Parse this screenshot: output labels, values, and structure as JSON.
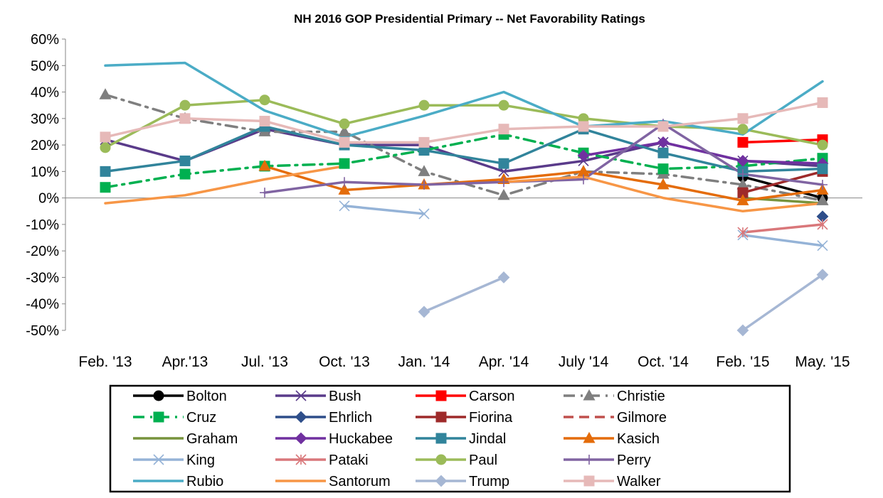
{
  "chart_data": {
    "type": "line",
    "title": "NH 2016 GOP Presidential Primary -- Net Favorability Ratings",
    "xlabel": "",
    "ylabel": "",
    "categories": [
      "Feb. '13",
      "Apr.'13",
      "Jul. '13",
      "Oct. '13",
      "Jan. '14",
      "Apr. '14",
      "July '14",
      "Oct. '14",
      "Feb. '15",
      "May. '15"
    ],
    "ylim": [
      -0.5,
      0.6
    ],
    "yticks": [
      0.6,
      0.5,
      0.4,
      0.3,
      0.2,
      0.1,
      0,
      -0.1,
      -0.2,
      -0.3,
      -0.4,
      -0.5
    ],
    "ytick_labels": [
      "60%",
      "50%",
      "40%",
      "30%",
      "20%",
      "10%",
      "0%",
      "-10%",
      "-20%",
      "-30%",
      "-40%",
      "-50%"
    ],
    "grid": false,
    "legend_position": "bottom",
    "series": [
      {
        "name": "Bolton",
        "color": "#000000",
        "dash": "solid",
        "marker": "circle",
        "values": [
          null,
          null,
          null,
          null,
          null,
          null,
          null,
          null,
          0.08,
          0.0
        ]
      },
      {
        "name": "Bush",
        "color": "#5a3b8a",
        "dash": "solid",
        "marker": "x",
        "values": [
          0.22,
          0.14,
          0.26,
          0.2,
          0.2,
          0.1,
          0.14,
          0.21,
          0.14,
          0.12
        ]
      },
      {
        "name": "Carson",
        "color": "#ff0000",
        "dash": "solid",
        "marker": "square",
        "values": [
          null,
          null,
          null,
          null,
          null,
          null,
          null,
          null,
          0.21,
          0.22
        ]
      },
      {
        "name": "Christie",
        "color": "#7f7f7f",
        "dash": "dashdot",
        "marker": "triangle",
        "values": [
          0.39,
          0.3,
          0.25,
          0.25,
          0.1,
          0.01,
          0.1,
          0.09,
          0.05,
          -0.01
        ]
      },
      {
        "name": "Cruz",
        "color": "#00b050",
        "dash": "dashdot",
        "marker": "square",
        "values": [
          0.04,
          0.09,
          0.12,
          0.13,
          0.18,
          0.24,
          0.17,
          0.11,
          0.12,
          0.15
        ]
      },
      {
        "name": "Ehrlich",
        "color": "#2e4e8a",
        "dash": "solid",
        "marker": "diamond",
        "values": [
          null,
          null,
          null,
          null,
          null,
          null,
          null,
          null,
          null,
          -0.07
        ]
      },
      {
        "name": "Fiorina",
        "color": "#9e2a2a",
        "dash": "solid",
        "marker": "square",
        "values": [
          null,
          null,
          null,
          null,
          null,
          null,
          null,
          null,
          0.02,
          0.1
        ]
      },
      {
        "name": "Gilmore",
        "color": "#c0504d",
        "dash": "dash",
        "marker": "none",
        "values": [
          null,
          null,
          null,
          null,
          null,
          null,
          null,
          null,
          null,
          null
        ]
      },
      {
        "name": "Graham",
        "color": "#77933c",
        "dash": "solid",
        "marker": "none",
        "values": [
          null,
          null,
          null,
          null,
          null,
          null,
          null,
          null,
          0.0,
          -0.02
        ]
      },
      {
        "name": "Huckabee",
        "color": "#7030a0",
        "dash": "solid",
        "marker": "diamond",
        "values": [
          null,
          null,
          null,
          null,
          null,
          null,
          0.16,
          0.21,
          0.14,
          0.13
        ]
      },
      {
        "name": "Jindal",
        "color": "#31849b",
        "dash": "solid",
        "marker": "square",
        "values": [
          0.1,
          0.14,
          0.27,
          0.2,
          0.18,
          0.13,
          0.26,
          0.17,
          0.1,
          0.11
        ]
      },
      {
        "name": "Kasich",
        "color": "#e46c0a",
        "dash": "solid",
        "marker": "triangle",
        "values": [
          null,
          null,
          0.12,
          0.03,
          0.05,
          0.07,
          0.1,
          0.05,
          -0.01,
          0.03
        ]
      },
      {
        "name": "King",
        "color": "#95b3d7",
        "dash": "solid",
        "marker": "x",
        "values": [
          null,
          null,
          null,
          -0.03,
          -0.06,
          null,
          null,
          null,
          -0.14,
          -0.18
        ]
      },
      {
        "name": "Pataki",
        "color": "#d9777a",
        "dash": "solid",
        "marker": "asterisk",
        "values": [
          null,
          null,
          null,
          null,
          null,
          null,
          null,
          null,
          -0.13,
          -0.1
        ]
      },
      {
        "name": "Paul",
        "color": "#9bbb59",
        "dash": "solid",
        "marker": "circle",
        "values": [
          0.19,
          0.35,
          0.37,
          0.28,
          0.35,
          0.35,
          0.3,
          0.27,
          0.26,
          0.2
        ]
      },
      {
        "name": "Perry",
        "color": "#8064a2",
        "dash": "solid",
        "marker": "plus",
        "values": [
          null,
          null,
          0.02,
          0.06,
          0.05,
          0.06,
          0.07,
          0.28,
          0.09,
          0.05
        ]
      },
      {
        "name": "Rubio",
        "color": "#4bacc6",
        "dash": "solid",
        "marker": "none",
        "values": [
          0.5,
          0.51,
          0.33,
          0.23,
          0.31,
          0.4,
          0.27,
          0.29,
          0.24,
          0.44
        ]
      },
      {
        "name": "Santorum",
        "color": "#f79646",
        "dash": "solid",
        "marker": "none",
        "values": [
          -0.02,
          0.01,
          0.07,
          0.12,
          null,
          0.06,
          0.08,
          0.0,
          -0.05,
          -0.02
        ]
      },
      {
        "name": "Trump",
        "color": "#a6b7d4",
        "dash": "solid",
        "marker": "diamond",
        "values": [
          null,
          null,
          null,
          null,
          -0.43,
          -0.3,
          null,
          null,
          -0.5,
          -0.29
        ]
      },
      {
        "name": "Walker",
        "color": "#e6b9b8",
        "dash": "solid",
        "marker": "square",
        "values": [
          0.23,
          0.3,
          0.29,
          0.21,
          0.21,
          0.26,
          0.27,
          0.27,
          0.3,
          0.36
        ]
      }
    ]
  }
}
